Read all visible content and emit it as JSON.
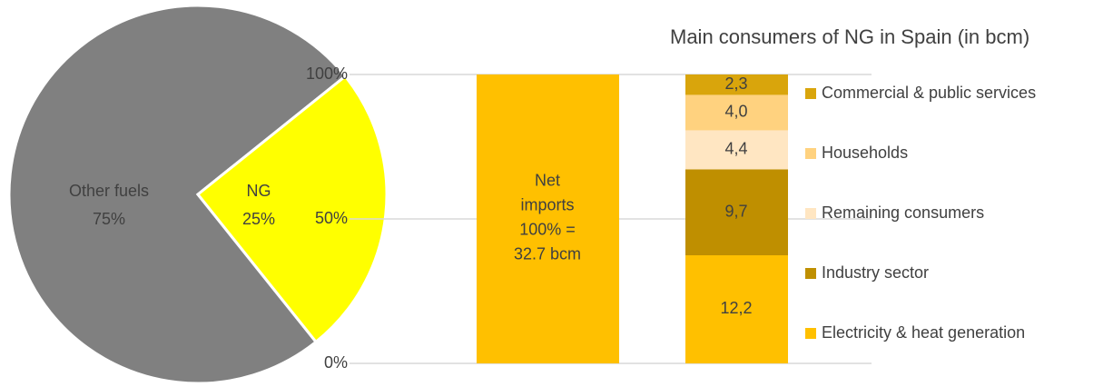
{
  "chart_data": [
    {
      "type": "pie",
      "categories": [
        "Other fuels",
        "NG"
      ],
      "values": [
        75,
        25
      ],
      "value_labels": [
        "75%",
        "25%"
      ],
      "colors": [
        "#808080",
        "#ffff00"
      ]
    },
    {
      "type": "bar",
      "categories": [
        null
      ],
      "values": [
        100
      ],
      "color": "#ffc000",
      "annotation": [
        "Net",
        "imports",
        "100% =",
        "32.7 bcm"
      ],
      "ylim": [
        0,
        100
      ],
      "yticks": [
        {
          "value": 0,
          "label": "0%"
        },
        {
          "value": 50,
          "label": "50%"
        },
        {
          "value": 100,
          "label": "100%"
        }
      ],
      "grid": true
    },
    {
      "type": "stacked_bar",
      "title": "Main consumers of NG in Spain (in bcm)",
      "categories": [
        null
      ],
      "ylim": [
        0,
        32.6
      ],
      "legend": "right",
      "series": [
        {
          "name": "Electricity & heat generation",
          "color": "#ffc000",
          "values": [
            12.2
          ],
          "value_labels": [
            "12,2"
          ]
        },
        {
          "name": "Industry sector",
          "color": "#bf8f00",
          "values": [
            9.7
          ],
          "value_labels": [
            "9,7"
          ]
        },
        {
          "name": "Remaining consumers",
          "color": "#ffe6c2",
          "values": [
            4.4
          ],
          "value_labels": [
            "4,4"
          ]
        },
        {
          "name": "Households",
          "color": "#ffd27f",
          "values": [
            4.0
          ],
          "value_labels": [
            "4,0"
          ]
        },
        {
          "name": "Commercial & public services",
          "color": "#d9a50c",
          "values": [
            2.3
          ],
          "value_labels": [
            "2,3"
          ]
        }
      ]
    }
  ]
}
